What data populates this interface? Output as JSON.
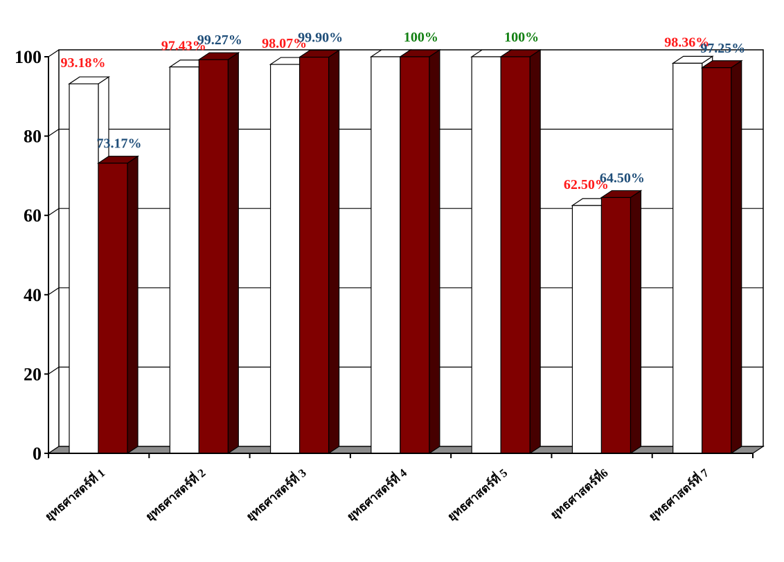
{
  "chart_data": {
    "type": "bar",
    "title": "",
    "xlabel": "",
    "ylabel": "",
    "ylim": [
      0,
      100
    ],
    "yticks": [
      "0",
      "20",
      "40",
      "60",
      "80",
      "100"
    ],
    "categories": [
      "ยุทธศาสตร์ที่ 1",
      "ยุทธศาสตร์ที่ 2",
      "ยุทธศาสตร์ที่ 3",
      "ยุทธศาสตร์ที่ 4",
      "ยุทธศาสตร์ที่ 5",
      "ยุทธศาสตร์ที่6",
      "ยุทธศาสตร์ที่ 7"
    ],
    "series": [
      {
        "color": "#ffffff",
        "values": [
          93.18,
          97.43,
          98.07,
          100,
          100,
          62.5,
          98.36
        ],
        "labels": [
          "93.18%",
          "97.43%",
          "98.07%",
          "",
          "",
          "62.50%",
          "98.36%"
        ],
        "label_colors": [
          "#ff1a1a",
          "#ff1a1a",
          "#ff1a1a",
          "",
          "",
          "#ff1a1a",
          "#ff1a1a"
        ]
      },
      {
        "color": "#800000",
        "values": [
          73.17,
          99.27,
          99.9,
          100,
          100,
          64.5,
          97.25
        ],
        "labels": [
          "73.17%",
          "99.27%",
          "99.90%",
          "100%",
          "100%",
          "64.50%",
          "97.25%"
        ],
        "label_colors": [
          "#1f4e79",
          "#1f4e79",
          "#1f4e79",
          "#138013",
          "#138013",
          "#1f4e79",
          "#1f4e79"
        ]
      }
    ],
    "grid": true,
    "legend": "none"
  }
}
